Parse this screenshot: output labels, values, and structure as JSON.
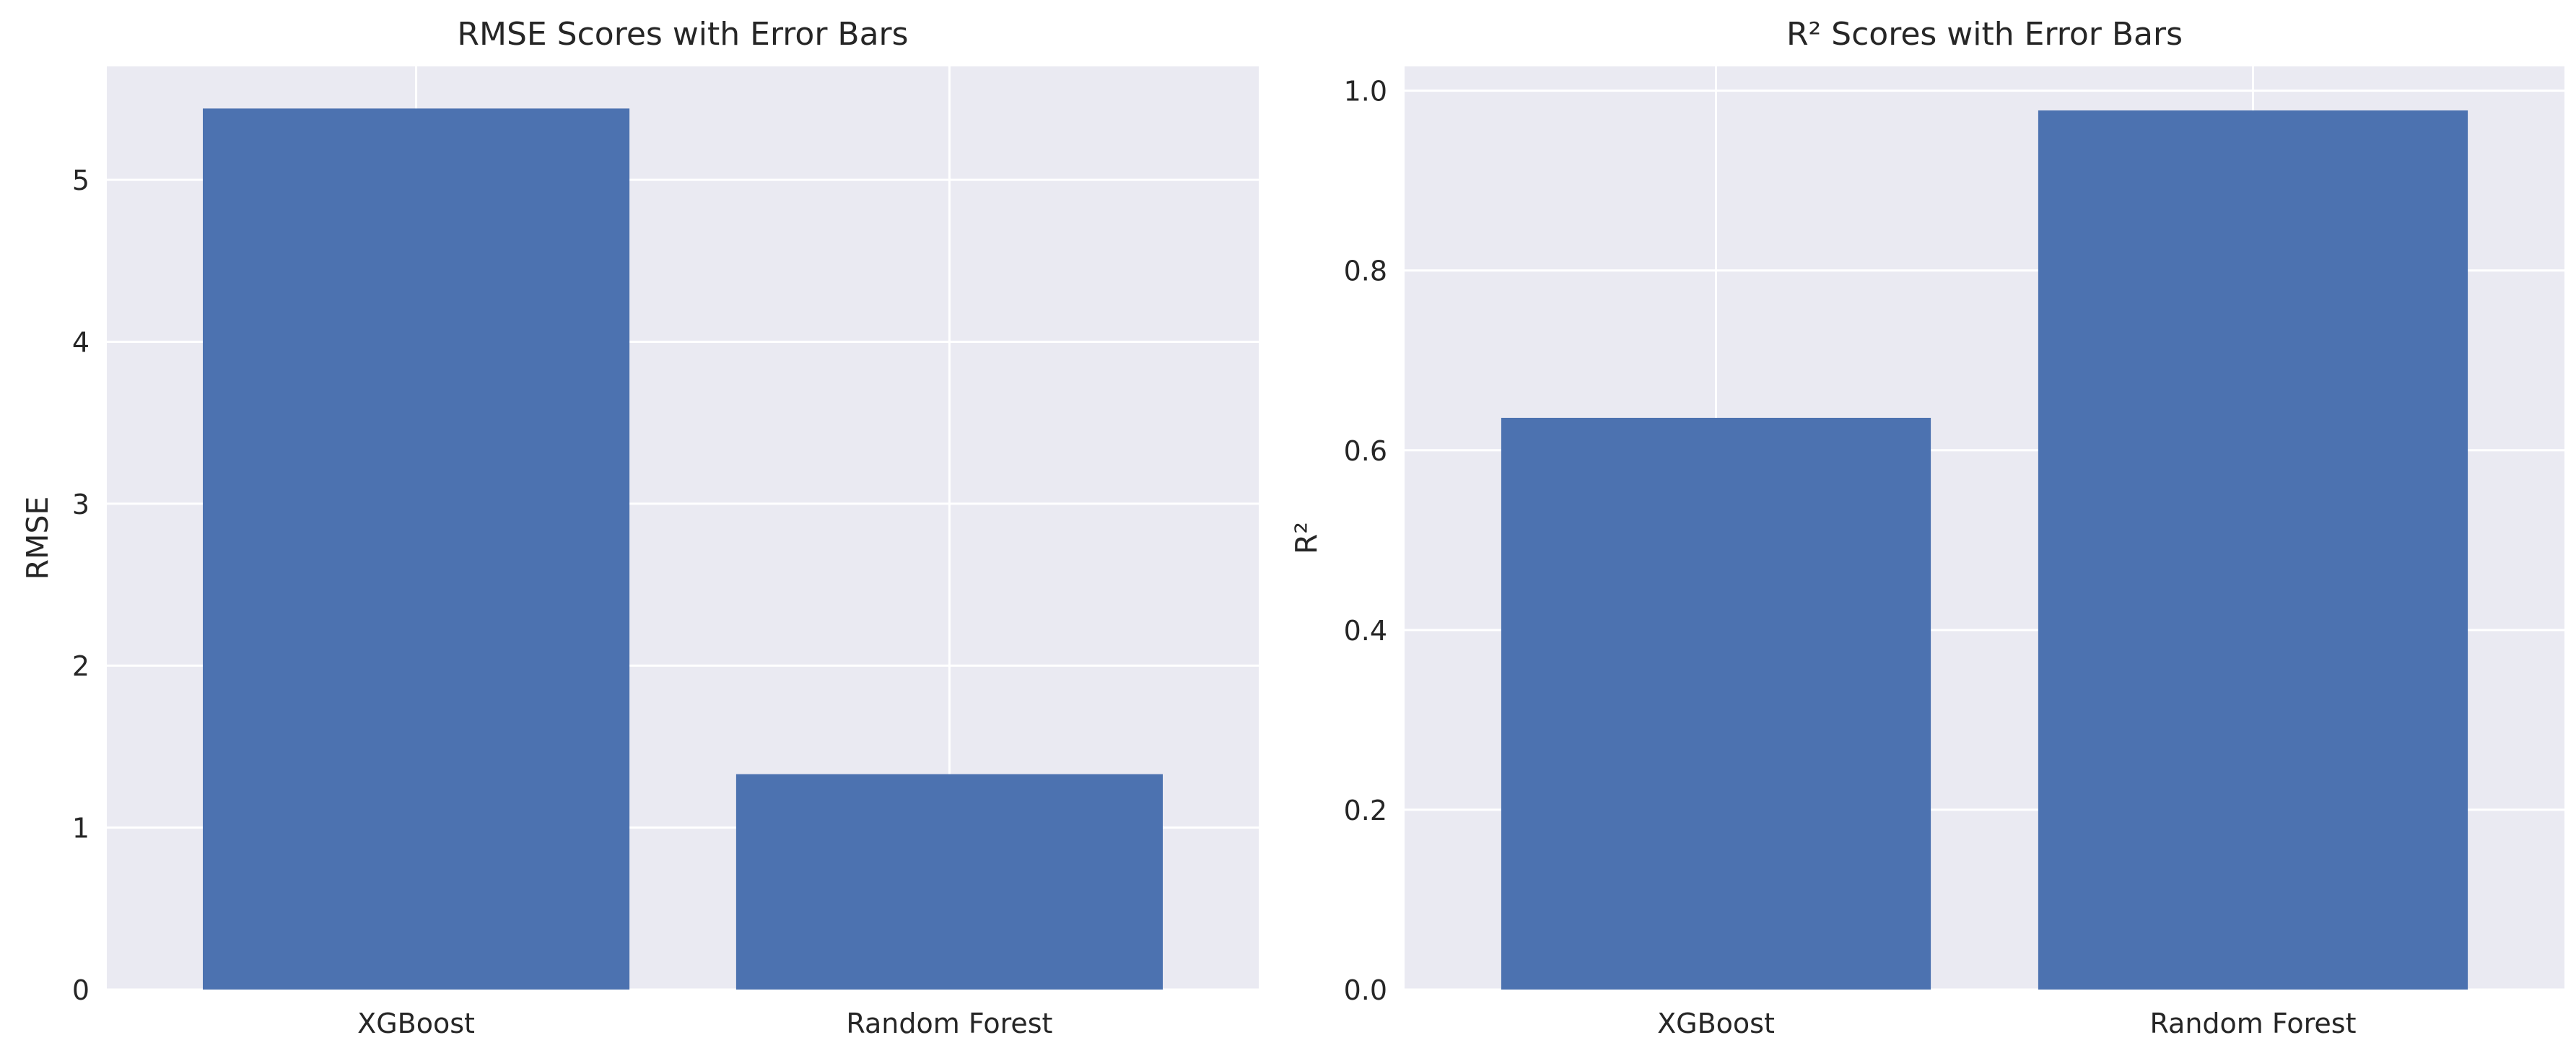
{
  "chart_data": [
    {
      "type": "bar",
      "title": "RMSE Scores with Error Bars",
      "xlabel": "",
      "ylabel": "RMSE",
      "categories": [
        "XGBoost",
        "Random Forest"
      ],
      "values": [
        5.44,
        1.33
      ],
      "ylim": [
        0,
        5.7
      ],
      "yticks": [
        0,
        1,
        2,
        3,
        4,
        5
      ],
      "ytick_labels": [
        "0",
        "1",
        "2",
        "3",
        "4",
        "5"
      ],
      "grid": true,
      "bar_color": "#4c72b0",
      "background_color": "#eaeaf2",
      "grid_color": "#ffffff"
    },
    {
      "type": "bar",
      "title": "R² Scores with Error Bars",
      "xlabel": "",
      "ylabel": "R²",
      "categories": [
        "XGBoost",
        "Random Forest"
      ],
      "values": [
        0.636,
        0.978
      ],
      "ylim": [
        0,
        1.027
      ],
      "yticks": [
        0,
        0.2,
        0.4,
        0.6,
        0.8,
        1.0
      ],
      "ytick_labels": [
        "0.0",
        "0.2",
        "0.4",
        "0.6",
        "0.8",
        "1.0"
      ],
      "grid": true,
      "bar_color": "#4c72b0",
      "background_color": "#eaeaf2",
      "grid_color": "#ffffff"
    }
  ]
}
